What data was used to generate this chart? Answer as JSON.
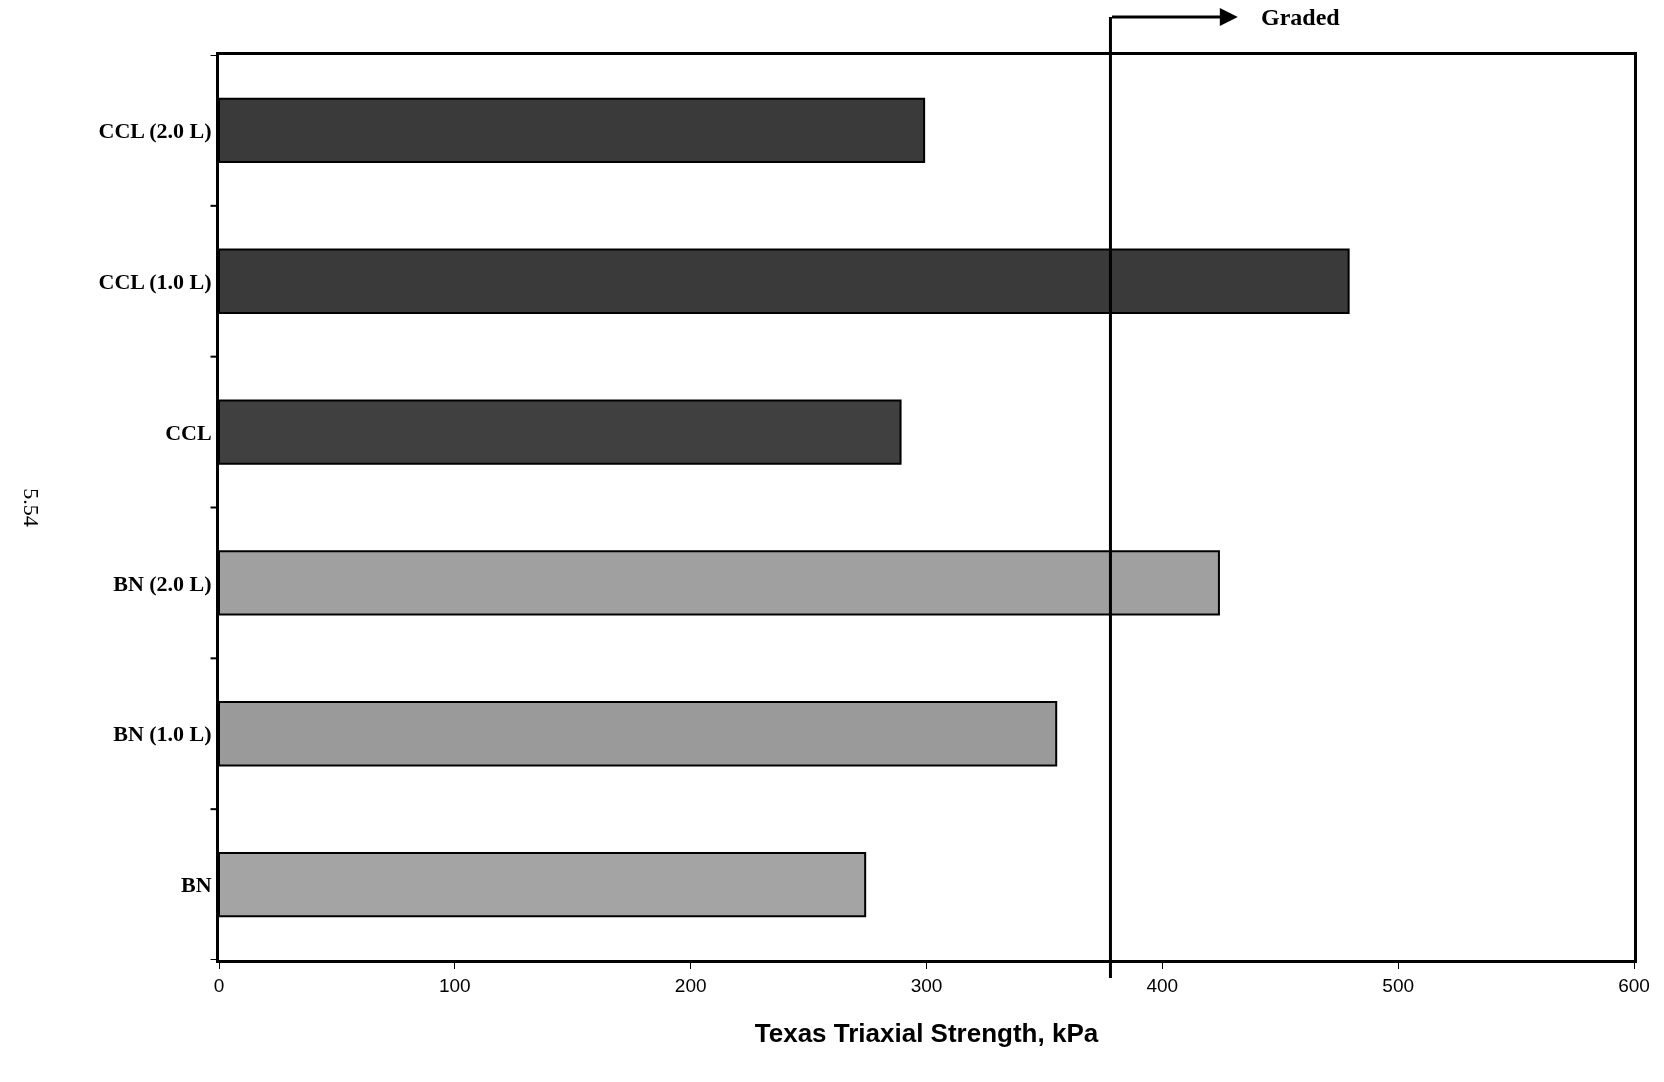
{
  "chart_data": {
    "type": "bar",
    "orientation": "horizontal",
    "xlabel": "Texas Triaxial Strength, kPa",
    "categories": [
      "CCL (2.0 L)",
      "CCL (1.0 L)",
      "CCL",
      "BN (2.0 L)",
      "BN (1.0 L)",
      "BN"
    ],
    "values": [
      299,
      479,
      289,
      424,
      355,
      274
    ],
    "colors": [
      "#3a3a3a",
      "#3a3a3a",
      "#404040",
      "#a0a0a0",
      "#9a9a9a",
      "#a4a4a4"
    ],
    "xlim": [
      0,
      600
    ],
    "xticks": [
      0,
      100,
      200,
      300,
      400,
      500,
      600
    ],
    "ref_lines": [
      {
        "axis": "x",
        "value": 378,
        "label": "Graded",
        "color": "#000000"
      }
    ],
    "annotations": [
      "5.54"
    ],
    "grid": false,
    "legend": false
  }
}
